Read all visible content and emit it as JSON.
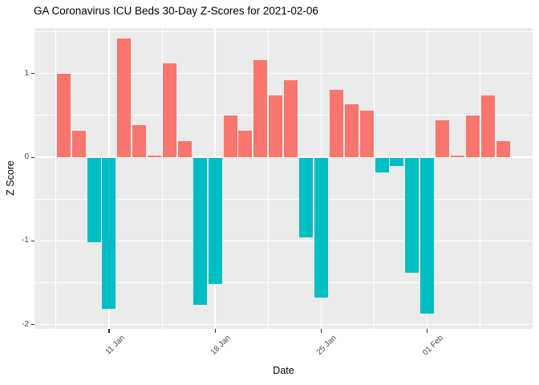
{
  "chart_data": {
    "type": "bar",
    "title": "GA Coronavirus ICU Beds 30-Day Z-Scores for 2021-02-06",
    "xlabel": "Date",
    "ylabel": "Z Score",
    "x": [
      "2021-01-08",
      "2021-01-09",
      "2021-01-10",
      "2021-01-11",
      "2021-01-12",
      "2021-01-13",
      "2021-01-14",
      "2021-01-15",
      "2021-01-16",
      "2021-01-17",
      "2021-01-18",
      "2021-01-19",
      "2021-01-20",
      "2021-01-21",
      "2021-01-22",
      "2021-01-23",
      "2021-01-24",
      "2021-01-25",
      "2021-01-26",
      "2021-01-27",
      "2021-01-28",
      "2021-01-29",
      "2021-01-30",
      "2021-01-31",
      "2021-02-01",
      "2021-02-02",
      "2021-02-03",
      "2021-02-04",
      "2021-02-05",
      "2021-02-06"
    ],
    "values": [
      1.0,
      0.32,
      -1.01,
      -1.8,
      1.42,
      0.38,
      0.02,
      1.12,
      0.19,
      -1.75,
      -1.51,
      0.5,
      0.32,
      1.16,
      0.74,
      0.92,
      -0.95,
      -1.67,
      0.81,
      0.63,
      0.56,
      -0.17,
      -0.1,
      -1.37,
      -1.86,
      0.44,
      0.02,
      0.5,
      0.74,
      0.19
    ],
    "x_ticks": [
      {
        "label": "11 Jan",
        "day_index": 3
      },
      {
        "label": "18 Jan",
        "day_index": 10
      },
      {
        "label": "25 Jan",
        "day_index": 17
      },
      {
        "label": "01 Feb",
        "day_index": 24
      }
    ],
    "x_minor_day_index": [
      -0.5,
      6.5,
      13.5,
      20.5,
      27.5
    ],
    "y_ticks": [
      {
        "label": "1",
        "value": 1
      },
      {
        "label": "0",
        "value": 0
      },
      {
        "label": "-1",
        "value": -1
      },
      {
        "label": "-2",
        "value": -2
      }
    ],
    "y_minor": [
      1.5,
      0.5,
      -0.5,
      -1.5
    ],
    "ylim": [
      -2.05,
      1.55
    ],
    "grid": true,
    "legend": "none",
    "colors": {
      "positive_bar": "#F8766D",
      "negative_bar": "#00BFC4",
      "panel_bg": "#EBEBEB",
      "grid": "#FFFFFF",
      "tick_mark": "#333333",
      "tick_label": "#4D4D4D",
      "title_text": "#000000"
    }
  }
}
